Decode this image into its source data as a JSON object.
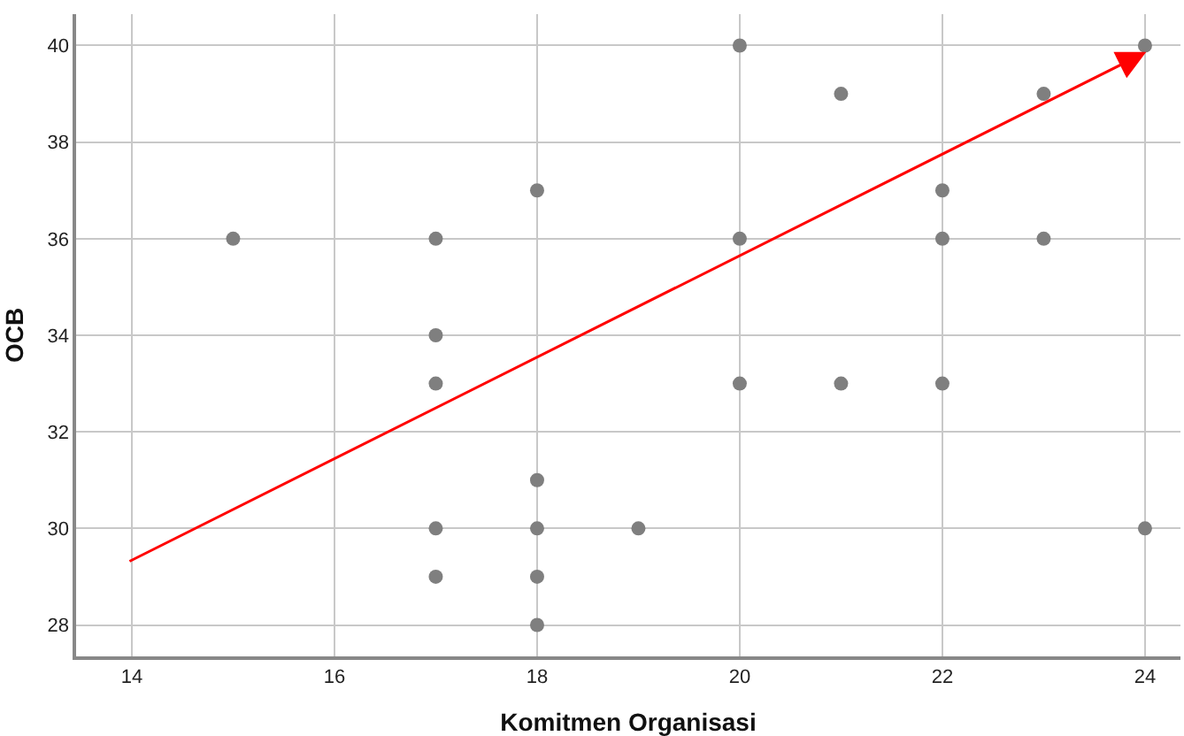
{
  "chart_data": {
    "type": "scatter",
    "xlabel": "Komitmen Organisasi",
    "ylabel": "OCB",
    "xlim": [
      13.45,
      24.35
    ],
    "xticks": [
      14,
      16,
      18,
      20,
      22,
      24
    ],
    "ylim": [
      27.35,
      40.65
    ],
    "yticks": [
      28,
      30,
      32,
      34,
      36,
      38,
      40
    ],
    "grid": true,
    "series": [
      {
        "marker": "circle",
        "color": "#7f7f7f",
        "x": [
          15,
          17,
          17,
          17,
          17,
          17,
          18,
          18,
          18,
          18,
          18,
          19,
          20,
          20,
          20,
          21,
          21,
          22,
          22,
          22,
          23,
          23,
          24,
          24
        ],
        "values": [
          36,
          36,
          34,
          33,
          30,
          29,
          37,
          31,
          30,
          29,
          28,
          30,
          40,
          36,
          33,
          39,
          33,
          37,
          36,
          33,
          39,
          36,
          40,
          30
        ]
      }
    ]
  }
}
